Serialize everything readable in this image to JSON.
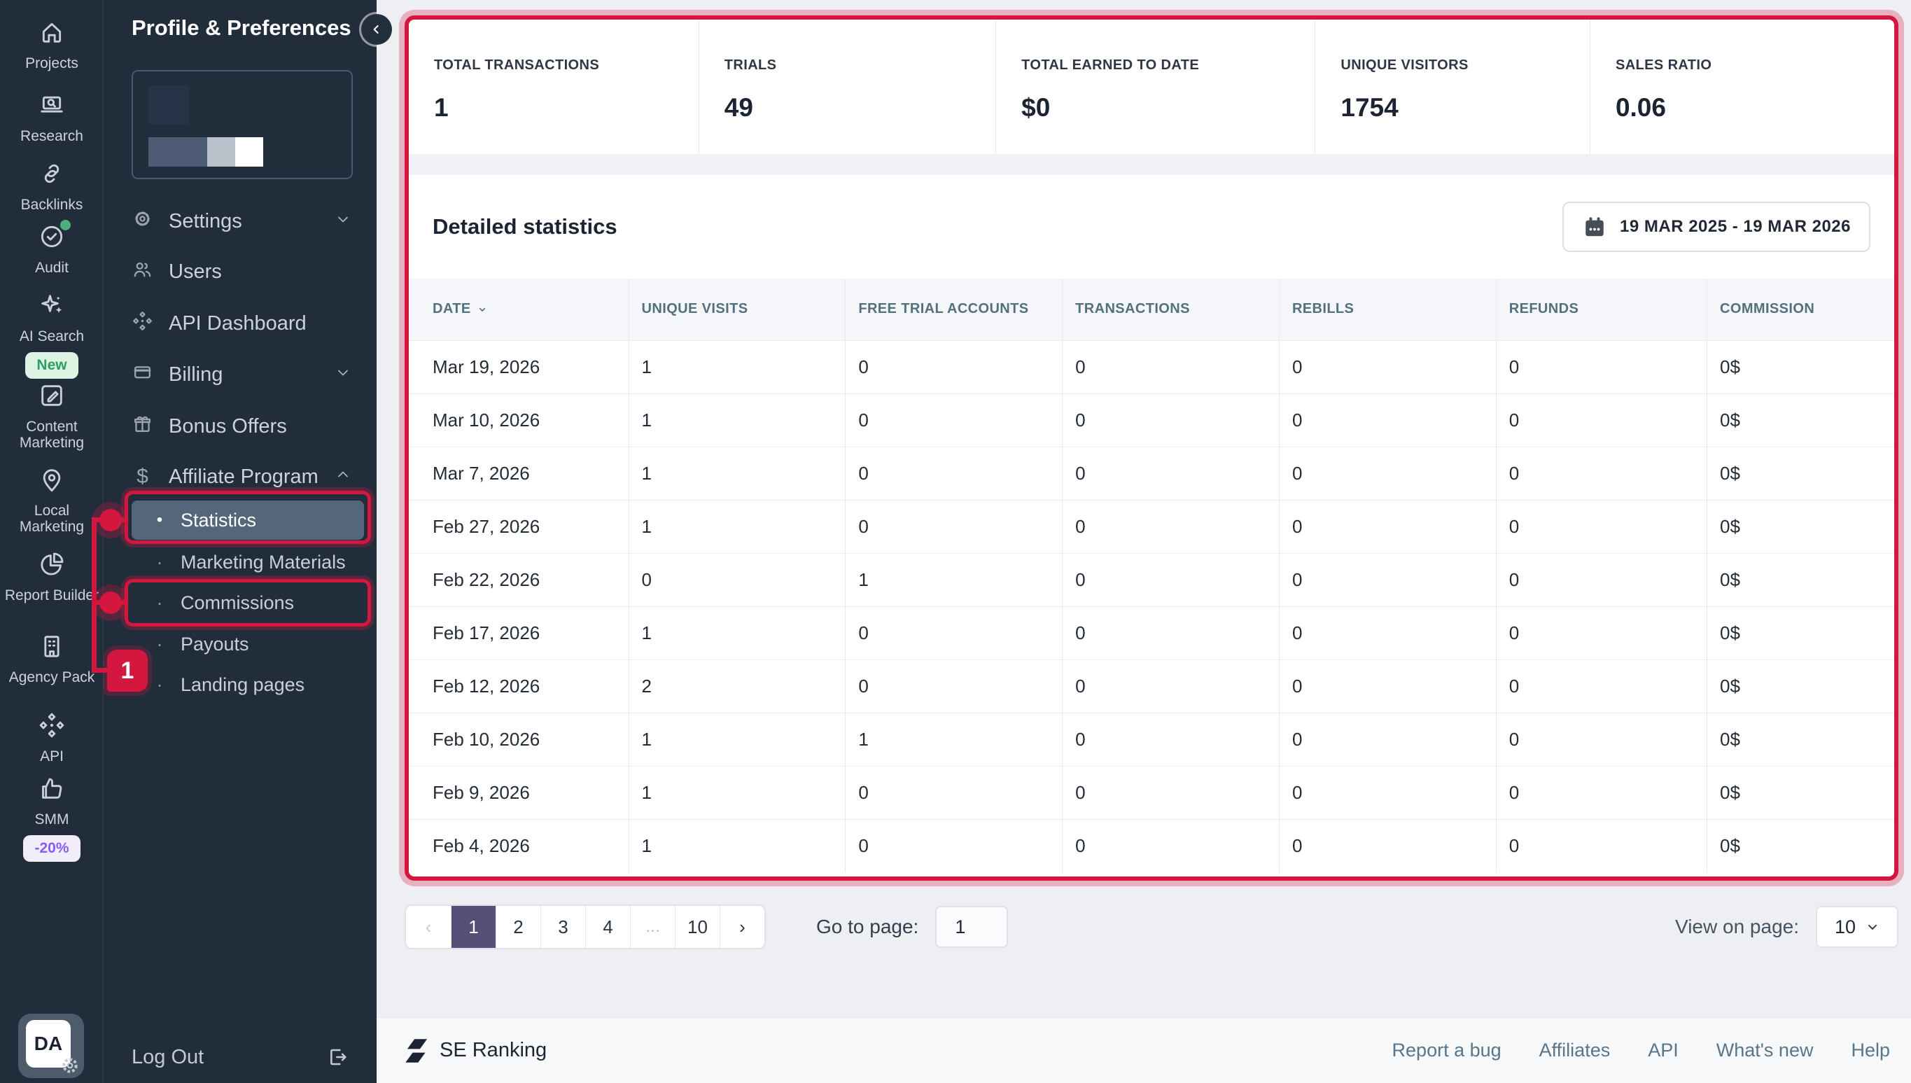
{
  "rail": {
    "items": [
      {
        "label": "Projects"
      },
      {
        "label": "Research"
      },
      {
        "label": "Backlinks"
      },
      {
        "label": "Audit"
      },
      {
        "label": "AI Search",
        "badge": "New"
      },
      {
        "label": "Content Marketing"
      },
      {
        "label": "Local Marketing"
      },
      {
        "label": "Report Builder"
      },
      {
        "label": "Agency Pack"
      },
      {
        "label": "API"
      },
      {
        "label": "SMM",
        "badge": "-20%"
      }
    ],
    "avatar_initials": "DA"
  },
  "sidebar": {
    "title": "Profile & Preferences",
    "menu": [
      {
        "label": "Settings"
      },
      {
        "label": "Users"
      },
      {
        "label": "API Dashboard"
      },
      {
        "label": "Billing"
      },
      {
        "label": "Bonus Offers"
      },
      {
        "label": "Affiliate Program"
      }
    ],
    "submenu": [
      {
        "label": "Statistics",
        "active": true
      },
      {
        "label": "Marketing Materials"
      },
      {
        "label": "Commissions"
      },
      {
        "label": "Payouts"
      },
      {
        "label": "Landing pages"
      }
    ],
    "logout_label": "Log Out"
  },
  "stats_cards": [
    {
      "label": "TOTAL TRANSACTIONS",
      "value": "1"
    },
    {
      "label": "TRIALS",
      "value": "49"
    },
    {
      "label": "TOTAL EARNED TO DATE",
      "value": "$0"
    },
    {
      "label": "UNIQUE VISITORS",
      "value": "1754"
    },
    {
      "label": "SALES RATIO",
      "value": "0.06"
    }
  ],
  "detailed": {
    "title": "Detailed statistics",
    "date_range": "19 MAR 2025 - 19 MAR 2026"
  },
  "table": {
    "columns": [
      "DATE",
      "UNIQUE VISITS",
      "FREE TRIAL ACCOUNTS",
      "TRANSACTIONS",
      "REBILLS",
      "REFUNDS",
      "COMMISSION"
    ],
    "rows": [
      [
        "Mar 19, 2026",
        "1",
        "0",
        "0",
        "0",
        "0",
        "0$"
      ],
      [
        "Mar 10, 2026",
        "1",
        "0",
        "0",
        "0",
        "0",
        "0$"
      ],
      [
        "Mar 7, 2026",
        "1",
        "0",
        "0",
        "0",
        "0",
        "0$"
      ],
      [
        "Feb 27, 2026",
        "1",
        "0",
        "0",
        "0",
        "0",
        "0$"
      ],
      [
        "Feb 22, 2026",
        "0",
        "1",
        "0",
        "0",
        "0",
        "0$"
      ],
      [
        "Feb 17, 2026",
        "1",
        "0",
        "0",
        "0",
        "0",
        "0$"
      ],
      [
        "Feb 12, 2026",
        "2",
        "0",
        "0",
        "0",
        "0",
        "0$"
      ],
      [
        "Feb 10, 2026",
        "1",
        "1",
        "0",
        "0",
        "0",
        "0$"
      ],
      [
        "Feb 9, 2026",
        "1",
        "0",
        "0",
        "0",
        "0",
        "0$"
      ],
      [
        "Feb 4, 2026",
        "1",
        "0",
        "0",
        "0",
        "0",
        "0$"
      ]
    ]
  },
  "pagination": {
    "prev": "‹",
    "pages": [
      "1",
      "2",
      "3",
      "4",
      "…",
      "10"
    ],
    "active_page": "1",
    "next": "›",
    "goto_label": "Go to page:",
    "goto_value": "1",
    "view_label": "View on page:",
    "view_value": "10"
  },
  "footer": {
    "brand": "SE Ranking",
    "links": [
      "Report a bug",
      "Affiliates",
      "API",
      "What's new",
      "Help"
    ]
  },
  "annotation": {
    "step": "1"
  },
  "colors": {
    "accent_red": "#d4173f",
    "sidebar_bg": "#222d3c",
    "active_item": "#54677a",
    "pagination_active": "#565077",
    "new_badge_green": "#2ba061",
    "sale_badge_purple": "#8a5cf5"
  }
}
